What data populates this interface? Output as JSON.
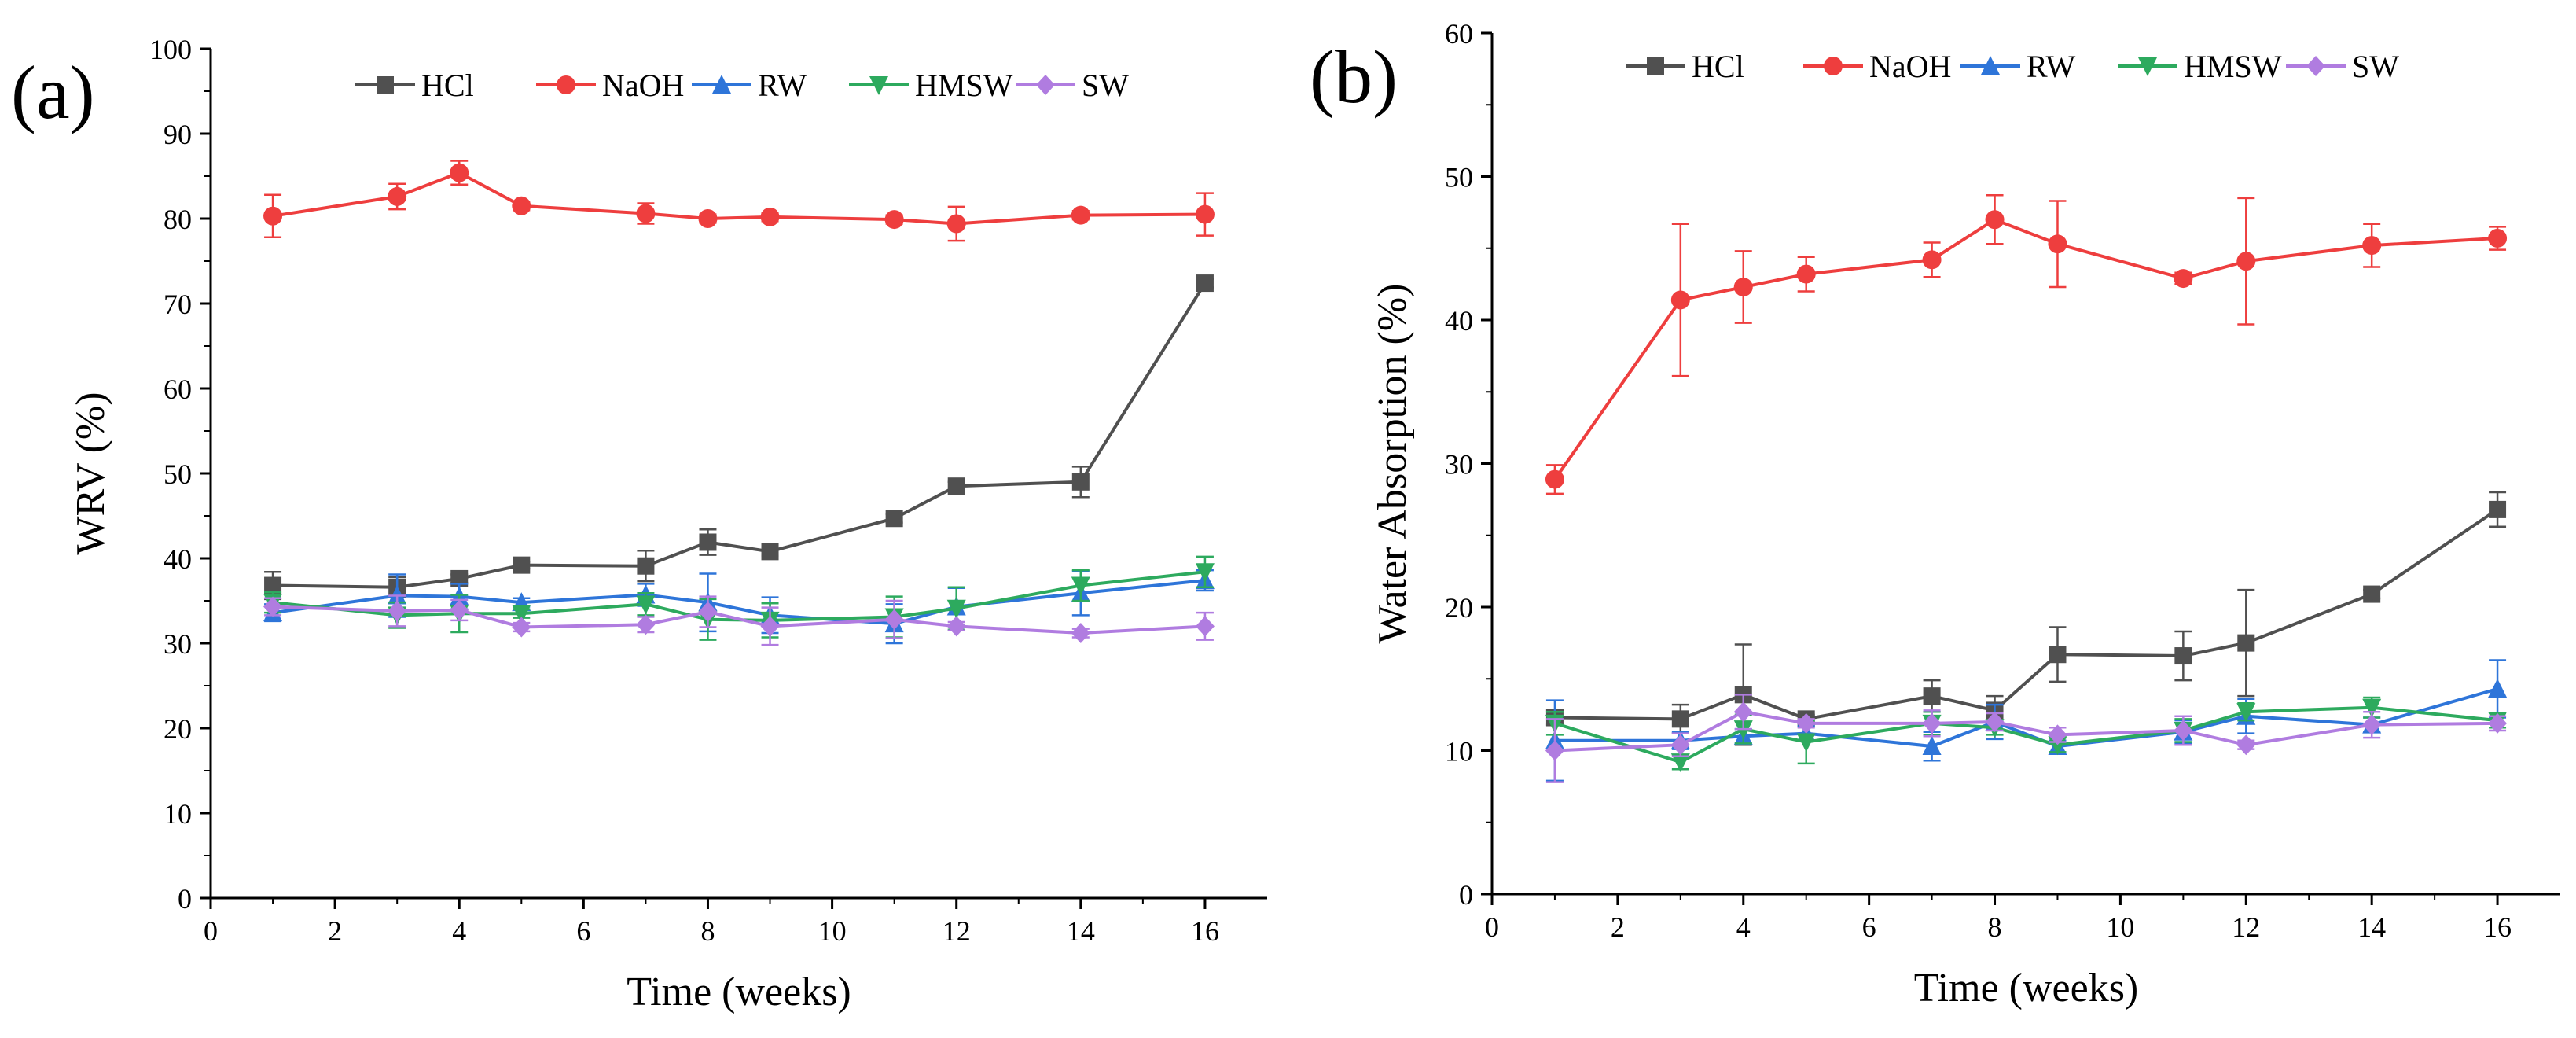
{
  "chart_data": [
    {
      "type": "line",
      "panel_label": "(a)",
      "title": "",
      "xlabel": "Time (weeks)",
      "ylabel": "WRV (%)",
      "xlim": [
        0,
        17
      ],
      "ylim": [
        0,
        100
      ],
      "xticks": [
        0,
        2,
        4,
        6,
        8,
        10,
        12,
        14,
        16
      ],
      "yticks": [
        0,
        10,
        20,
        30,
        40,
        50,
        60,
        70,
        80,
        90,
        100
      ],
      "legend_position": "top",
      "series": [
        {
          "name": "HCl",
          "color": "#505050",
          "marker": "square",
          "x": [
            1,
            3,
            4,
            5,
            7,
            8,
            9,
            11,
            12,
            14,
            16
          ],
          "y": [
            36.8,
            36.6,
            37.6,
            39.2,
            39.1,
            41.9,
            40.8,
            44.7,
            48.5,
            49.0,
            72.4
          ],
          "err": [
            1.6,
            1.2,
            0.5,
            0.4,
            1.8,
            1.5,
            0.5,
            0.5,
            0.5,
            1.8,
            0.5
          ]
        },
        {
          "name": "NaOH",
          "color": "#EE3E3E",
          "marker": "circle",
          "x": [
            1,
            3,
            4,
            5,
            7,
            8,
            9,
            11,
            12,
            14,
            16
          ],
          "y": [
            80.3,
            82.6,
            85.4,
            81.5,
            80.6,
            80.0,
            80.2,
            79.9,
            79.4,
            80.4,
            80.5
          ],
          "err": [
            2.5,
            1.5,
            1.4,
            0.5,
            1.2,
            0.5,
            0.5,
            0.5,
            2.0,
            0.5,
            2.5
          ]
        },
        {
          "name": "RW",
          "color": "#2E75D9",
          "marker": "triangle-up",
          "x": [
            1,
            3,
            4,
            5,
            7,
            8,
            9,
            11,
            12,
            14,
            16
          ],
          "y": [
            33.6,
            35.6,
            35.5,
            34.8,
            35.7,
            34.8,
            33.3,
            32.3,
            34.3,
            35.9,
            37.4
          ],
          "err": [
            1.0,
            2.5,
            1.5,
            0.5,
            1.3,
            3.4,
            2.1,
            2.3,
            2.2,
            2.6,
            1.2
          ]
        },
        {
          "name": "HMSW",
          "color": "#2DAA5E",
          "marker": "triangle-down",
          "x": [
            1,
            3,
            4,
            5,
            7,
            8,
            9,
            11,
            12,
            14,
            16
          ],
          "y": [
            34.8,
            33.3,
            33.5,
            33.5,
            34.6,
            32.8,
            32.7,
            33.1,
            34.1,
            36.8,
            38.4
          ],
          "err": [
            1.2,
            1.5,
            2.2,
            0.5,
            1.3,
            2.4,
            2.0,
            2.4,
            2.5,
            1.8,
            1.8
          ]
        },
        {
          "name": "SW",
          "color": "#B07CE0",
          "marker": "diamond",
          "x": [
            1,
            3,
            4,
            5,
            7,
            8,
            9,
            11,
            12,
            14,
            16
          ],
          "y": [
            34.3,
            33.8,
            33.9,
            31.9,
            32.2,
            33.7,
            32.0,
            32.8,
            32.0,
            31.2,
            32.0
          ],
          "err": [
            1.0,
            1.8,
            1.2,
            0.5,
            0.9,
            1.8,
            2.2,
            2.2,
            0.5,
            0.5,
            1.6
          ]
        }
      ]
    },
    {
      "type": "line",
      "panel_label": "(b)",
      "title": "",
      "xlabel": "Time (weeks)",
      "ylabel": "Water Absorption (%)",
      "xlim": [
        0,
        17
      ],
      "ylim": [
        0,
        60
      ],
      "xticks": [
        0,
        2,
        4,
        6,
        8,
        10,
        12,
        14,
        16
      ],
      "yticks": [
        0,
        10,
        20,
        30,
        40,
        50,
        60
      ],
      "legend_position": "top",
      "series": [
        {
          "name": "HCl",
          "color": "#505050",
          "marker": "square",
          "x": [
            1,
            3,
            4,
            5,
            7,
            8,
            9,
            11,
            12,
            14,
            16
          ],
          "y": [
            12.3,
            12.2,
            13.9,
            12.2,
            13.8,
            12.8,
            16.7,
            16.6,
            17.5,
            20.9,
            26.8
          ],
          "err": [
            0.5,
            1.0,
            3.5,
            0.3,
            1.1,
            1.0,
            1.9,
            1.7,
            3.7,
            0.3,
            1.2
          ]
        },
        {
          "name": "NaOH",
          "color": "#EE3E3E",
          "marker": "circle",
          "x": [
            1,
            3,
            4,
            5,
            7,
            8,
            9,
            11,
            12,
            14,
            16
          ],
          "y": [
            28.9,
            41.4,
            42.3,
            43.2,
            44.2,
            47.0,
            45.3,
            42.9,
            44.1,
            45.2,
            45.7
          ],
          "err": [
            1.0,
            5.3,
            2.5,
            1.2,
            1.2,
            1.7,
            3.0,
            0.4,
            4.4,
            1.5,
            0.8
          ]
        },
        {
          "name": "RW",
          "color": "#2E75D9",
          "marker": "triangle-up",
          "x": [
            1,
            3,
            4,
            5,
            7,
            8,
            9,
            11,
            12,
            14,
            16
          ],
          "y": [
            10.7,
            10.7,
            11.0,
            11.2,
            10.3,
            12.0,
            10.3,
            11.3,
            12.4,
            11.8,
            14.3
          ],
          "err": [
            2.8,
            0.6,
            0.5,
            0.5,
            1.0,
            1.2,
            0.4,
            0.8,
            1.2,
            0.5,
            2.0
          ]
        },
        {
          "name": "HMSW",
          "color": "#2DAA5E",
          "marker": "triangle-down",
          "x": [
            1,
            3,
            4,
            5,
            7,
            8,
            9,
            11,
            12,
            14,
            16
          ],
          "y": [
            11.9,
            9.2,
            11.5,
            10.6,
            11.9,
            11.6,
            10.4,
            11.4,
            12.7,
            13.0,
            12.1
          ],
          "err": [
            0.8,
            0.5,
            1.0,
            1.5,
            0.8,
            0.5,
            0.5,
            0.8,
            0.6,
            0.7,
            0.5
          ]
        },
        {
          "name": "SW",
          "color": "#B07CE0",
          "marker": "diamond",
          "x": [
            1,
            3,
            4,
            5,
            7,
            8,
            9,
            11,
            12,
            14,
            16
          ],
          "y": [
            10.0,
            10.4,
            12.7,
            11.9,
            11.9,
            12.0,
            11.1,
            11.4,
            10.4,
            11.8,
            11.9
          ],
          "err": [
            2.2,
            0.8,
            1.2,
            0.3,
            0.9,
            0.6,
            0.5,
            1.0,
            0.3,
            0.9,
            0.5
          ]
        }
      ]
    }
  ]
}
